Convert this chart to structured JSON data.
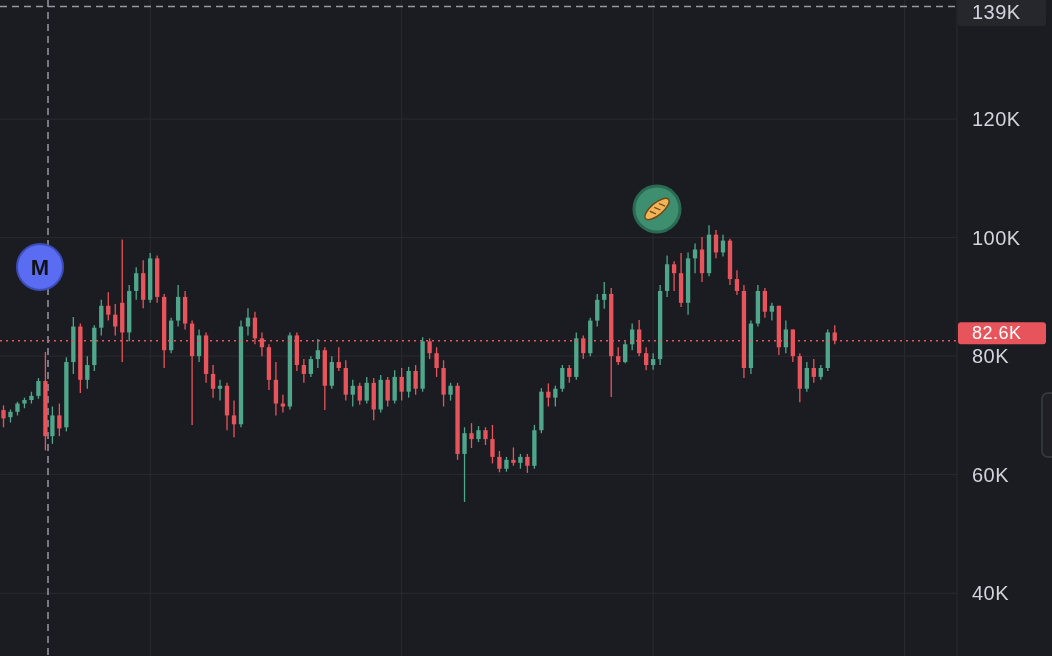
{
  "chart_data": {
    "type": "candlestick",
    "categories": [
      null,
      null,
      null,
      null,
      null,
      null,
      null,
      null,
      null,
      null,
      null,
      null,
      null,
      null,
      null,
      null,
      null,
      null,
      null,
      null,
      null,
      null,
      null,
      null,
      null,
      null,
      null,
      null,
      null,
      null,
      null,
      null,
      null,
      null,
      null,
      null,
      null,
      null,
      null,
      null,
      null,
      null,
      null,
      null,
      null,
      null,
      null,
      null,
      null,
      null,
      null,
      null,
      null,
      null,
      null,
      null,
      null,
      null,
      null,
      null,
      null,
      null,
      null,
      null,
      null,
      null,
      null,
      null,
      null,
      null,
      null,
      null,
      null,
      null,
      null,
      null,
      null,
      null,
      null,
      null,
      null,
      null,
      null,
      null,
      null,
      null,
      null,
      null,
      null,
      null,
      null,
      null,
      null,
      null,
      null,
      null,
      null,
      null,
      null,
      null,
      null,
      null,
      null,
      null,
      null,
      null,
      null,
      null,
      null,
      null,
      null,
      null,
      null,
      null,
      null,
      null,
      null,
      null,
      null,
      null,
      null,
      null,
      null,
      null,
      null,
      null,
      null,
      null,
      null,
      null,
      null,
      null,
      null,
      null,
      null,
      null,
      null
    ],
    "ohlc": [
      [
        70.9,
        71.7,
        68.0,
        69.5
      ],
      [
        69.7,
        71.0,
        68.8,
        70.6
      ],
      [
        70.6,
        72.3,
        70.0,
        72.0
      ],
      [
        72.0,
        73.0,
        71.2,
        72.6
      ],
      [
        72.6,
        74.0,
        72.0,
        73.3
      ],
      [
        73.3,
        76.3,
        72.8,
        75.8
      ],
      [
        75.8,
        80.7,
        64.1,
        66.5
      ],
      [
        66.5,
        71.5,
        65.2,
        70.0
      ],
      [
        70.0,
        72.0,
        66.5,
        67.8
      ],
      [
        68.0,
        79.8,
        67.3,
        79.0
      ],
      [
        79.0,
        86.6,
        77.0,
        85.0
      ],
      [
        85.0,
        85.5,
        73.8,
        76.0
      ],
      [
        76.0,
        80.0,
        74.5,
        78.5
      ],
      [
        78.5,
        85.2,
        77.5,
        84.8
      ],
      [
        84.8,
        89.5,
        83.5,
        88.5
      ],
      [
        88.5,
        90.8,
        86.0,
        87.0
      ],
      [
        87.0,
        88.8,
        83.5,
        85.0
      ],
      [
        89.0,
        99.7,
        79.0,
        84.0
      ],
      [
        84.0,
        92.0,
        82.5,
        91.0
      ],
      [
        91.0,
        95.0,
        89.5,
        94.0
      ],
      [
        94.0,
        96.2,
        88.1,
        89.5
      ],
      [
        89.5,
        97.4,
        89.0,
        96.5
      ],
      [
        96.5,
        97.0,
        89.0,
        90.0
      ],
      [
        90.0,
        90.5,
        78.0,
        81.0
      ],
      [
        81.0,
        86.5,
        80.5,
        86.0
      ],
      [
        86.0,
        92.0,
        85.0,
        90.0
      ],
      [
        90.0,
        91.0,
        84.5,
        85.5
      ],
      [
        85.5,
        86.0,
        68.4,
        80.0
      ],
      [
        80.0,
        84.5,
        79.0,
        83.5
      ],
      [
        83.5,
        84.0,
        75.5,
        77.0
      ],
      [
        77.0,
        78.5,
        73.0,
        74.5
      ],
      [
        74.5,
        76.0,
        72.5,
        75.0
      ],
      [
        75.0,
        75.5,
        67.5,
        70.0
      ],
      [
        70.0,
        72.5,
        66.3,
        68.5
      ],
      [
        68.5,
        86.0,
        68.0,
        85.0
      ],
      [
        85.0,
        88.1,
        83.5,
        86.5
      ],
      [
        86.5,
        87.5,
        82.0,
        83.0
      ],
      [
        83.0,
        84.0,
        80.0,
        81.5
      ],
      [
        81.5,
        82.0,
        74.3,
        76.0
      ],
      [
        76.0,
        79.0,
        70.0,
        72.0
      ],
      [
        72.0,
        73.5,
        70.5,
        71.5
      ],
      [
        71.5,
        84.0,
        71.0,
        83.5
      ],
      [
        83.5,
        84.0,
        77.5,
        78.5
      ],
      [
        78.5,
        79.5,
        75.5,
        77.0
      ],
      [
        77.0,
        80.0,
        76.5,
        79.5
      ],
      [
        79.5,
        82.9,
        78.0,
        81.0
      ],
      [
        81.0,
        81.5,
        70.9,
        75.0
      ],
      [
        75.0,
        80.0,
        74.5,
        79.0
      ],
      [
        79.0,
        81.5,
        77.5,
        78.0
      ],
      [
        78.0,
        79.3,
        72.5,
        73.5
      ],
      [
        73.5,
        76.0,
        71.5,
        75.0
      ],
      [
        75.0,
        75.5,
        71.8,
        72.5
      ],
      [
        72.5,
        76.5,
        72.0,
        75.5
      ],
      [
        75.5,
        76.3,
        69.2,
        71.0
      ],
      [
        71.0,
        76.8,
        70.5,
        76.0
      ],
      [
        76.0,
        76.5,
        71.5,
        72.5
      ],
      [
        72.5,
        77.6,
        72.0,
        76.5
      ],
      [
        76.5,
        78.0,
        72.5,
        74.0
      ],
      [
        74.0,
        78.2,
        73.0,
        77.5
      ],
      [
        77.5,
        78.5,
        73.5,
        74.5
      ],
      [
        74.5,
        83.2,
        74.0,
        82.5
      ],
      [
        82.5,
        83.0,
        79.5,
        80.5
      ],
      [
        80.5,
        81.5,
        76.5,
        78.0
      ],
      [
        78.0,
        79.3,
        71.5,
        73.5
      ],
      [
        73.5,
        75.5,
        72.5,
        75.0
      ],
      [
        75.0,
        75.5,
        62.5,
        63.5
      ],
      [
        63.5,
        68.0,
        55.4,
        67.0
      ],
      [
        67.0,
        68.7,
        64.5,
        66.0
      ],
      [
        66.0,
        68.2,
        65.5,
        67.5
      ],
      [
        67.5,
        68.0,
        65.0,
        66.0
      ],
      [
        66.0,
        68.4,
        61.9,
        63.0
      ],
      [
        63.0,
        64.0,
        60.4,
        61.0
      ],
      [
        61.0,
        63.0,
        60.5,
        62.5
      ],
      [
        62.5,
        64.6,
        61.5,
        62.0
      ],
      [
        62.0,
        63.5,
        61.0,
        63.0
      ],
      [
        63.0,
        63.5,
        60.3,
        61.5
      ],
      [
        61.5,
        68.4,
        61.0,
        67.5
      ],
      [
        67.5,
        74.6,
        67.0,
        74.0
      ],
      [
        74.0,
        75.4,
        71.5,
        73.0
      ],
      [
        73.0,
        75.0,
        71.5,
        74.5
      ],
      [
        74.5,
        78.5,
        74.0,
        78.0
      ],
      [
        78.0,
        78.5,
        75.5,
        76.5
      ],
      [
        76.5,
        84.0,
        76.0,
        83.0
      ],
      [
        83.0,
        83.5,
        79.5,
        80.5
      ],
      [
        80.5,
        86.5,
        80.0,
        86.0
      ],
      [
        86.0,
        90.5,
        85.0,
        89.5
      ],
      [
        89.5,
        92.5,
        88.0,
        90.5
      ],
      [
        90.5,
        91.5,
        73.1,
        80.0
      ],
      [
        80.0,
        81.5,
        78.5,
        79.0
      ],
      [
        79.0,
        82.5,
        78.8,
        82.0
      ],
      [
        82.0,
        85.5,
        81.0,
        84.5
      ],
      [
        84.5,
        86.1,
        80.0,
        80.5
      ],
      [
        80.5,
        81.5,
        77.6,
        78.5
      ],
      [
        78.5,
        80.5,
        77.7,
        79.5
      ],
      [
        79.5,
        92.0,
        78.5,
        91.0
      ],
      [
        91.0,
        97.0,
        90.0,
        95.5
      ],
      [
        95.5,
        96.0,
        91.0,
        94.0
      ],
      [
        94.0,
        97.4,
        88.3,
        89.0
      ],
      [
        89.0,
        97.5,
        87.0,
        96.5
      ],
      [
        96.5,
        99.0,
        94.0,
        98.0
      ],
      [
        98.0,
        100.1,
        92.5,
        94.0
      ],
      [
        94.0,
        102.1,
        93.5,
        100.5
      ],
      [
        100.5,
        101.3,
        96.5,
        97.5
      ],
      [
        97.5,
        100.5,
        96.8,
        99.5
      ],
      [
        99.5,
        99.8,
        92.0,
        93.0
      ],
      [
        93.0,
        94.5,
        90.3,
        91.0
      ],
      [
        91.0,
        92.0,
        76.3,
        78.0
      ],
      [
        78.0,
        86.0,
        77.0,
        85.5
      ],
      [
        85.5,
        92.0,
        85.0,
        91.0
      ],
      [
        91.0,
        91.5,
        86.5,
        87.5
      ],
      [
        87.5,
        89.0,
        86.0,
        88.5
      ],
      [
        88.5,
        88.5,
        80.2,
        81.5
      ],
      [
        81.5,
        86.0,
        80.5,
        84.5
      ],
      [
        84.5,
        84.5,
        79.0,
        80.0
      ],
      [
        80.0,
        80.5,
        72.2,
        74.5
      ],
      [
        74.5,
        79.0,
        74.0,
        78.0
      ],
      [
        78.0,
        79.5,
        75.5,
        76.5
      ],
      [
        76.5,
        78.5,
        76.0,
        78.0
      ],
      [
        78.0,
        84.5,
        77.5,
        84.0
      ],
      [
        84.0,
        85.2,
        82.0,
        82.6
      ],
      null,
      null,
      null,
      null,
      null,
      null,
      null,
      null,
      null,
      null,
      null,
      null,
      null,
      null,
      null,
      null,
      null
    ],
    "ylim": [
      29.4,
      140.1
    ],
    "yticks": [
      {
        "value": 40,
        "label": "40K"
      },
      {
        "value": 60,
        "label": "60K"
      },
      {
        "value": 80,
        "label": "80K"
      },
      {
        "value": 100,
        "label": "100K"
      },
      {
        "value": 120,
        "label": "120K"
      }
    ],
    "grid": true,
    "ref_lines": [
      {
        "axis": "y",
        "value": 82.6,
        "label": "82.6K",
        "color": "#e8545b",
        "line_style": "dotted"
      },
      {
        "axis": "y",
        "value": 139,
        "label": "139K",
        "color": "#9598a1",
        "line_style": "dashed"
      }
    ],
    "annotations": [
      "M"
    ]
  }
}
